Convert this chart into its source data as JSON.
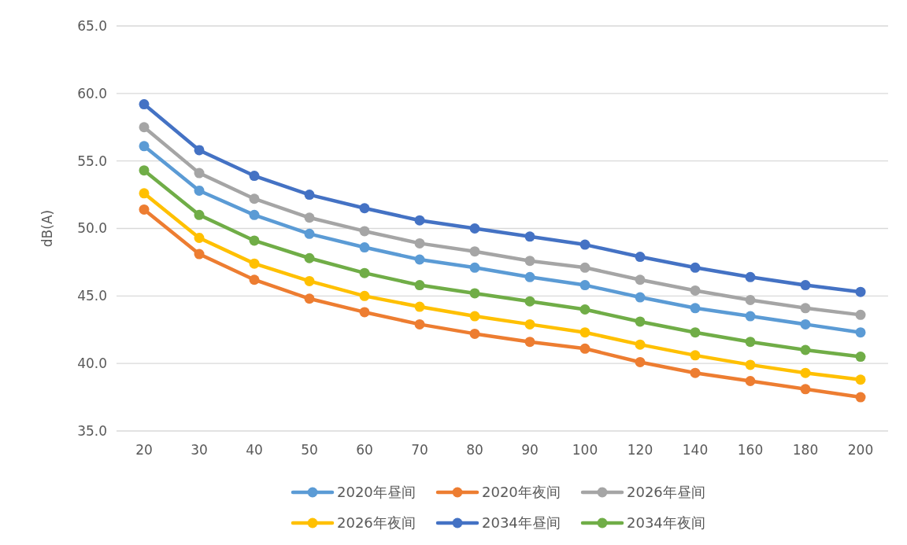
{
  "chart_data": {
    "type": "line",
    "ylabel": "dB(A)",
    "categories": [
      "20",
      "30",
      "40",
      "50",
      "60",
      "70",
      "80",
      "90",
      "100",
      "120",
      "140",
      "160",
      "180",
      "200"
    ],
    "ylim": [
      35,
      65
    ],
    "yticks": [
      {
        "value": 35,
        "label": "35.0"
      },
      {
        "value": 40,
        "label": "40.0"
      },
      {
        "value": 45,
        "label": "45.0"
      },
      {
        "value": 50,
        "label": "50.0"
      },
      {
        "value": 55,
        "label": "55.0"
      },
      {
        "value": 60,
        "label": "60.0"
      },
      {
        "value": 65,
        "label": "65.0"
      }
    ],
    "grid": "y",
    "legend": "bottom",
    "marker": "circle",
    "line_style": "solid",
    "series": [
      {
        "name": "2020年昼间",
        "color": "#5b9bd5",
        "values": [
          56.1,
          52.8,
          51.0,
          49.6,
          48.6,
          47.7,
          47.1,
          46.4,
          45.8,
          44.9,
          44.1,
          43.5,
          42.9,
          42.3
        ]
      },
      {
        "name": "2020年夜间",
        "color": "#ed7d31",
        "values": [
          51.4,
          48.1,
          46.2,
          44.8,
          43.8,
          42.9,
          42.2,
          41.6,
          41.1,
          40.1,
          39.3,
          38.7,
          38.1,
          37.5
        ]
      },
      {
        "name": "2026年昼间",
        "color": "#a5a5a5",
        "values": [
          57.5,
          54.1,
          52.2,
          50.8,
          49.8,
          48.9,
          48.3,
          47.6,
          47.1,
          46.2,
          45.4,
          44.7,
          44.1,
          43.6
        ]
      },
      {
        "name": "2026年夜间",
        "color": "#ffc000",
        "values": [
          52.6,
          49.3,
          47.4,
          46.1,
          45.0,
          44.2,
          43.5,
          42.9,
          42.3,
          41.4,
          40.6,
          39.9,
          39.3,
          38.8
        ]
      },
      {
        "name": "2034年昼间",
        "color": "#4472c4",
        "values": [
          59.2,
          55.8,
          53.9,
          52.5,
          51.5,
          50.6,
          50.0,
          49.4,
          48.8,
          47.9,
          47.1,
          46.4,
          45.8,
          45.3
        ]
      },
      {
        "name": "2034年夜间",
        "color": "#70ad47",
        "values": [
          54.3,
          51.0,
          49.1,
          47.8,
          46.7,
          45.8,
          45.2,
          44.6,
          44.0,
          43.1,
          42.3,
          41.6,
          41.0,
          40.5
        ]
      }
    ]
  }
}
